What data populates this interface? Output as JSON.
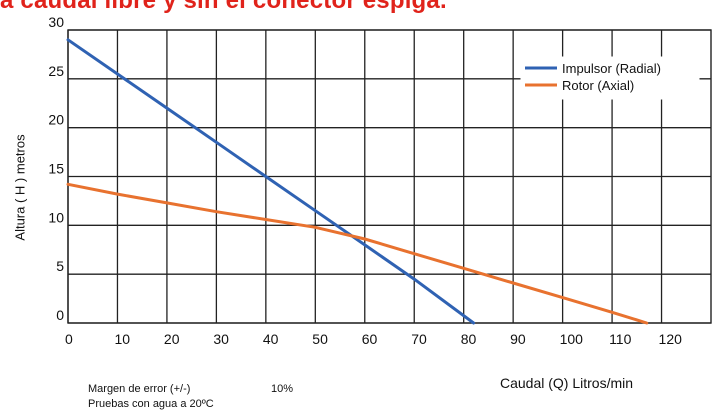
{
  "title_fragment": "a caudal libre y sin el conector espiga.",
  "notes": {
    "error_label": "Margen de error (+/-)",
    "error_value": "10%",
    "test_label": "Pruebas con agua a 20ºC"
  },
  "colors": {
    "title": "#e0231b",
    "impulsor": "#2f62b3",
    "rotor": "#e8722f",
    "grid": "#222222"
  },
  "chart_data": {
    "type": "line",
    "xlabel": "Caudal (Q)  Litros/min",
    "ylabel": "Altura ( H ) metros",
    "xlim": [
      0,
      130
    ],
    "ylim": [
      0,
      30
    ],
    "xticks": [
      0,
      10,
      20,
      30,
      40,
      50,
      60,
      70,
      80,
      90,
      100,
      110,
      120
    ],
    "yticks": [
      0,
      5,
      10,
      15,
      20,
      25,
      30
    ],
    "grid": true,
    "legend": "top-right",
    "series": [
      {
        "name": "Impulsor (Radial)",
        "x": [
          0,
          10,
          20,
          30,
          40,
          50,
          60,
          70,
          82
        ],
        "y": [
          29,
          25.5,
          22,
          18.5,
          15,
          11.5,
          8,
          4.5,
          0
        ]
      },
      {
        "name": "Rotor (Axial)",
        "x": [
          0,
          10,
          20,
          30,
          40,
          50,
          60,
          70,
          80,
          90,
          100,
          110,
          117
        ],
        "y": [
          14.2,
          13.2,
          12.3,
          11.4,
          10.6,
          9.8,
          8.6,
          7.1,
          5.6,
          4.1,
          2.6,
          1.1,
          0
        ]
      }
    ]
  }
}
